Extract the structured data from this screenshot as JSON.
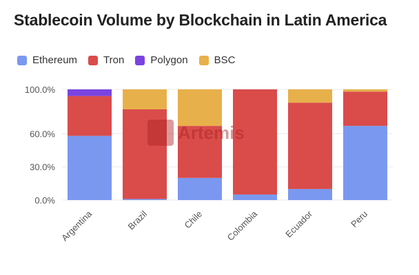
{
  "chart_data": {
    "type": "bar",
    "stacked": true,
    "title": "Stablecoin Volume by Blockchain in Latin America",
    "xlabel": "",
    "ylabel": "",
    "ylim": [
      0,
      100
    ],
    "yticks": [
      0,
      30,
      60,
      100
    ],
    "ytick_labels": [
      "0.0%",
      "30.0%",
      "60.0%",
      "100.0%"
    ],
    "grid": true,
    "legend_position": "top-left",
    "categories": [
      "Argentina",
      "Brazil",
      "Chile",
      "Colombia",
      "Ecuador",
      "Peru"
    ],
    "series": [
      {
        "name": "Ethereum",
        "color": "#7b98f0",
        "values": [
          58,
          1,
          20,
          5,
          10,
          67
        ]
      },
      {
        "name": "Tron",
        "color": "#d94c4a",
        "values": [
          36,
          81,
          47,
          95,
          78,
          31
        ]
      },
      {
        "name": "Polygon",
        "color": "#7a43e0",
        "values": [
          6,
          0,
          0,
          0,
          0,
          0
        ]
      },
      {
        "name": "BSC",
        "color": "#e8b04a",
        "values": [
          0,
          18,
          33,
          0,
          12,
          2
        ]
      }
    ],
    "watermark": "Artemis"
  }
}
